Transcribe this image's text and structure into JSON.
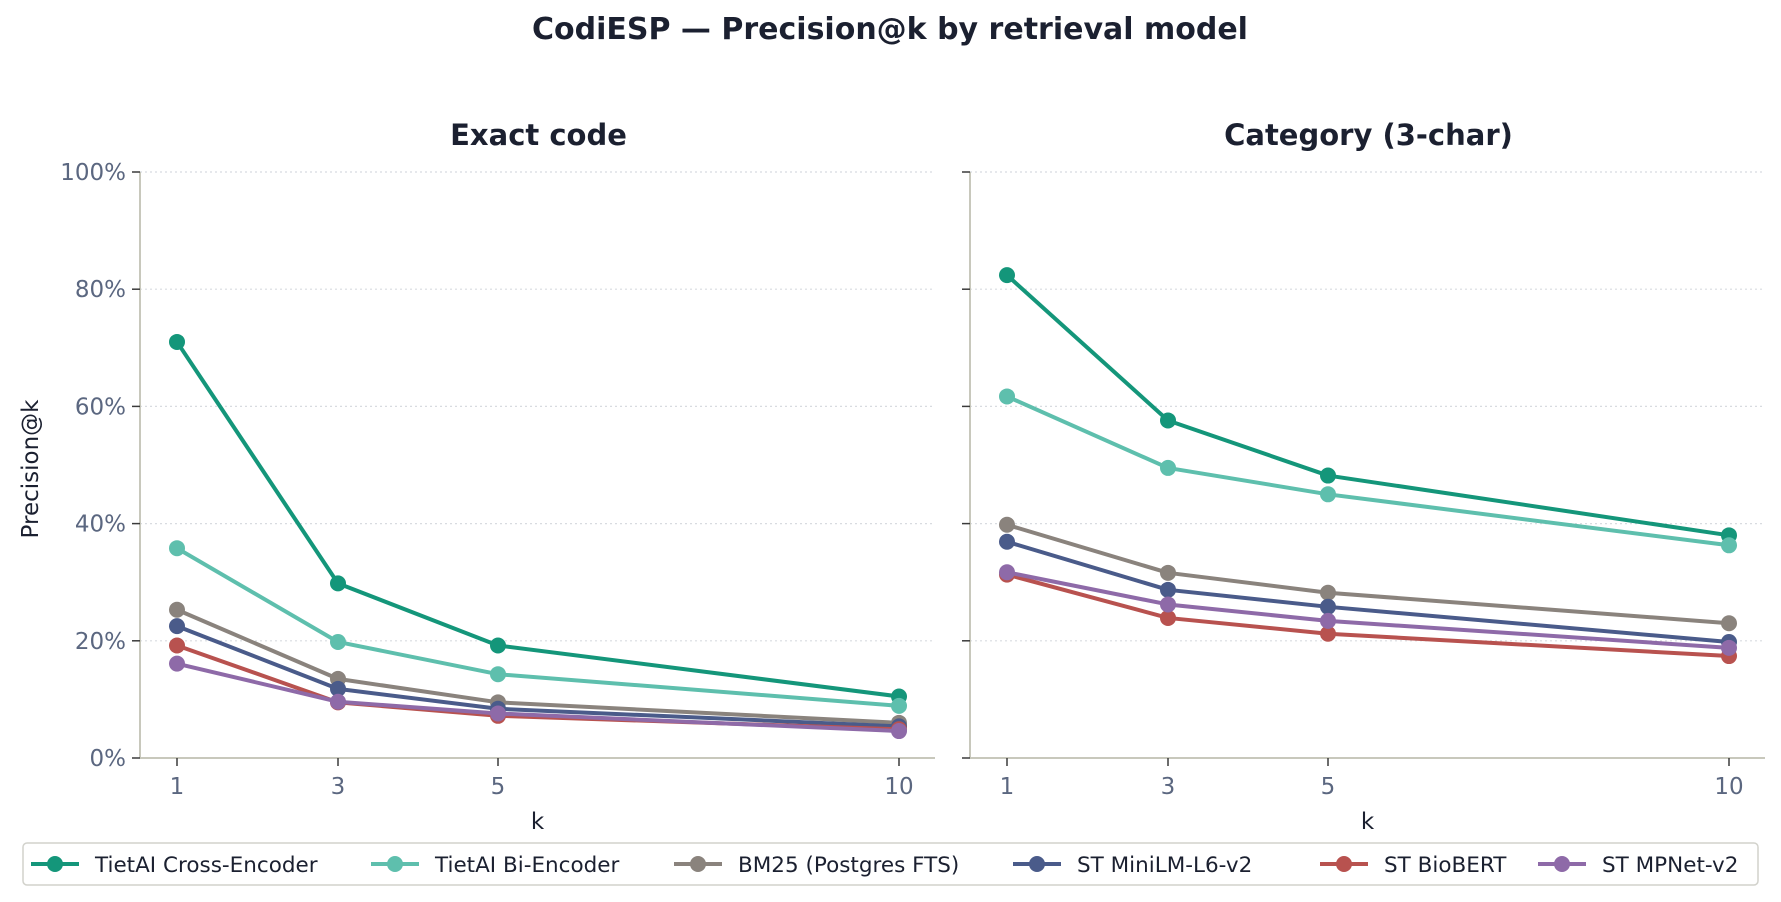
{
  "chart_data": {
    "type": "line",
    "title": "CodiESP — Precision@k by retrieval model",
    "x": [
      1,
      3,
      5,
      10
    ],
    "x_ticks": [
      "1",
      "3",
      "5",
      "10"
    ],
    "y_ticks": [
      "0%",
      "20%",
      "40%",
      "60%",
      "80%",
      "100%"
    ],
    "ylim": [
      0,
      100
    ],
    "ylabel": "Precision@k",
    "xlabel": "k",
    "grid": "horizontal dotted",
    "legend_placement": "bottom",
    "series_styles": [
      {
        "name": "TietAI Cross-Encoder",
        "color": "#14967a"
      },
      {
        "name": "TietAI Bi-Encoder",
        "color": "#5ebfad"
      },
      {
        "name": "BM25 (Postgres FTS)",
        "color": "#8a837d"
      },
      {
        "name": "ST MiniLM-L6-v2",
        "color": "#4a5b8a"
      },
      {
        "name": "ST BioBERT",
        "color": "#b8524f"
      },
      {
        "name": "ST MPNet-v2",
        "color": "#8e6aa8"
      }
    ],
    "panels": [
      {
        "title": "Exact code",
        "series": [
          {
            "values": [
              71.0,
              29.8,
              19.2,
              10.5
            ]
          },
          {
            "values": [
              35.8,
              19.8,
              14.3,
              8.9
            ]
          },
          {
            "values": [
              25.3,
              13.5,
              9.5,
              6.0
            ]
          },
          {
            "values": [
              22.5,
              11.8,
              8.4,
              5.4
            ]
          },
          {
            "values": [
              19.2,
              9.5,
              7.2,
              4.9
            ]
          },
          {
            "values": [
              16.1,
              9.6,
              7.6,
              4.6
            ]
          }
        ]
      },
      {
        "title": "Category (3-char)",
        "series": [
          {
            "values": [
              82.4,
              57.6,
              48.2,
              38.0
            ]
          },
          {
            "values": [
              61.7,
              49.5,
              45.0,
              36.3
            ]
          },
          {
            "values": [
              39.8,
              31.6,
              28.2,
              23.0
            ]
          },
          {
            "values": [
              36.9,
              28.7,
              25.8,
              19.8
            ]
          },
          {
            "values": [
              31.3,
              23.9,
              21.2,
              17.4
            ]
          },
          {
            "values": [
              31.7,
              26.2,
              23.4,
              18.8
            ]
          }
        ]
      }
    ]
  }
}
